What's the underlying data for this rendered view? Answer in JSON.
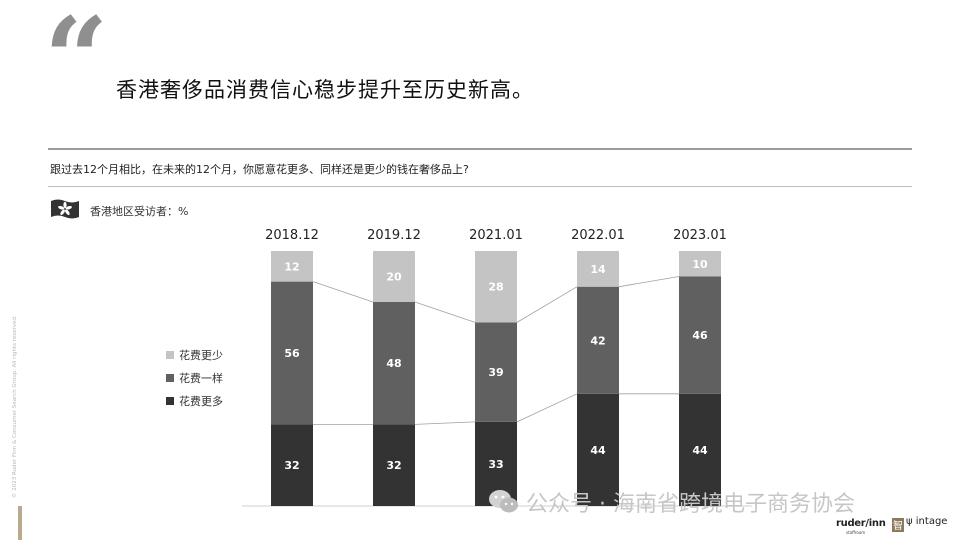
{
  "quote_mark": "“",
  "headline": "香港奢侈品消费信心稳步提升至历史新高。",
  "question": "跟过去12个月相比，在未来的12个月，你愿意花更多、同样还是更少的钱在奢侈品上?",
  "respondent_label": "香港地区受访者：%",
  "chart_data": {
    "type": "bar",
    "stacked": true,
    "categories": [
      "2018.12",
      "2019.12",
      "2021.01",
      "2022.01",
      "2023.01"
    ],
    "series": [
      {
        "name": "花费更多",
        "values": [
          32,
          32,
          33,
          44,
          44
        ],
        "color": "#333333"
      },
      {
        "name": "花费一样",
        "values": [
          56,
          48,
          39,
          42,
          46
        ],
        "color": "#606060"
      },
      {
        "name": "花费更少",
        "values": [
          12,
          20,
          28,
          14,
          10
        ],
        "color": "#c4c4c4"
      }
    ],
    "legend": [
      "花费更少",
      "花费一样",
      "花费更多"
    ],
    "ylim": [
      0,
      100
    ],
    "connector_lines": true
  },
  "copyright": "© 2023 Ruder Finn & Consumer Search Group. All rights reserved.",
  "watermark": "公众号 · 海南省跨境电子商务协会",
  "logos": {
    "ruderfinn": "ruder/inn",
    "ruderfinn_sub": "staffroom",
    "intage": "intage",
    "logo2_glyph": "智"
  }
}
